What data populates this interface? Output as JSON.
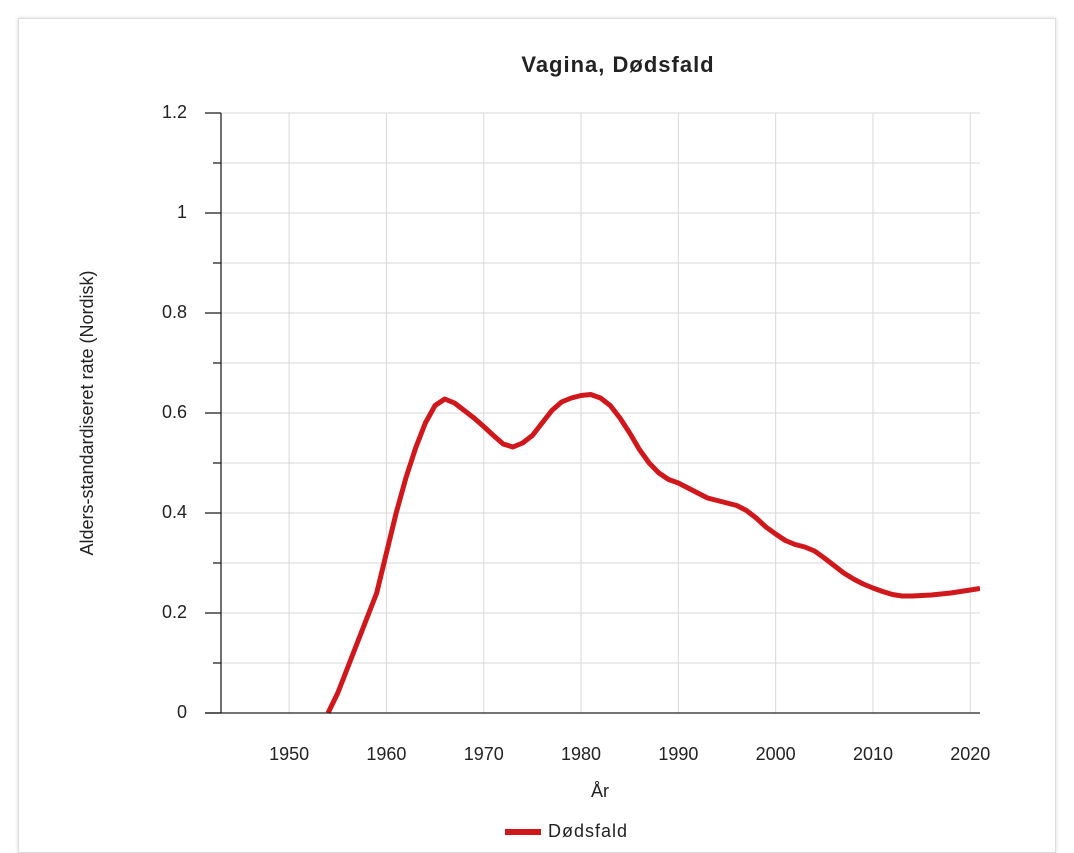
{
  "chart_data": {
    "type": "line",
    "title": "Vagina, Dødsfald",
    "x_label": "År",
    "y_label": "Alders-standardiseret rate (Nordisk)",
    "x": [
      1954,
      1955,
      1956,
      1957,
      1958,
      1959,
      1960,
      1961,
      1962,
      1963,
      1964,
      1965,
      1966,
      1967,
      1968,
      1969,
      1970,
      1971,
      1972,
      1973,
      1974,
      1975,
      1976,
      1977,
      1978,
      1979,
      1980,
      1981,
      1982,
      1983,
      1984,
      1985,
      1986,
      1987,
      1988,
      1989,
      1990,
      1991,
      1992,
      1993,
      1994,
      1995,
      1996,
      1997,
      1998,
      1999,
      2000,
      2001,
      2002,
      2003,
      2004,
      2005,
      2006,
      2007,
      2008,
      2009,
      2010,
      2011,
      2012,
      2013,
      2014,
      2015,
      2016,
      2017,
      2018,
      2019,
      2020,
      2021
    ],
    "series": [
      {
        "name": "Dødsfald",
        "color": "#d0181c",
        "values": [
          0,
          0.04,
          0.09,
          0.14,
          0.19,
          0.24,
          0.32,
          0.4,
          0.47,
          0.53,
          0.58,
          0.615,
          0.628,
          0.62,
          0.605,
          0.59,
          0.573,
          0.555,
          0.538,
          0.532,
          0.54,
          0.555,
          0.58,
          0.605,
          0.622,
          0.63,
          0.635,
          0.637,
          0.63,
          0.615,
          0.59,
          0.56,
          0.527,
          0.5,
          0.48,
          0.467,
          0.46,
          0.45,
          0.44,
          0.43,
          0.425,
          0.42,
          0.415,
          0.405,
          0.39,
          0.372,
          0.358,
          0.345,
          0.337,
          0.332,
          0.324,
          0.31,
          0.295,
          0.28,
          0.268,
          0.258,
          0.25,
          0.243,
          0.237,
          0.234,
          0.234,
          0.235,
          0.236,
          0.238,
          0.24,
          0.243,
          0.246,
          0.249
        ]
      }
    ],
    "xlim": [
      1943,
      2021
    ],
    "xticks": [
      1950,
      1960,
      1970,
      1980,
      1990,
      2000,
      2010,
      2020
    ],
    "ylim": [
      0,
      1.2
    ],
    "yticks": [
      0,
      0.2,
      0.4,
      0.6,
      0.8,
      1,
      1.2
    ],
    "yminorticks": [
      0.1,
      0.3,
      0.5,
      0.7,
      0.9,
      1.1
    ],
    "grid": true,
    "legend": "bottom"
  }
}
